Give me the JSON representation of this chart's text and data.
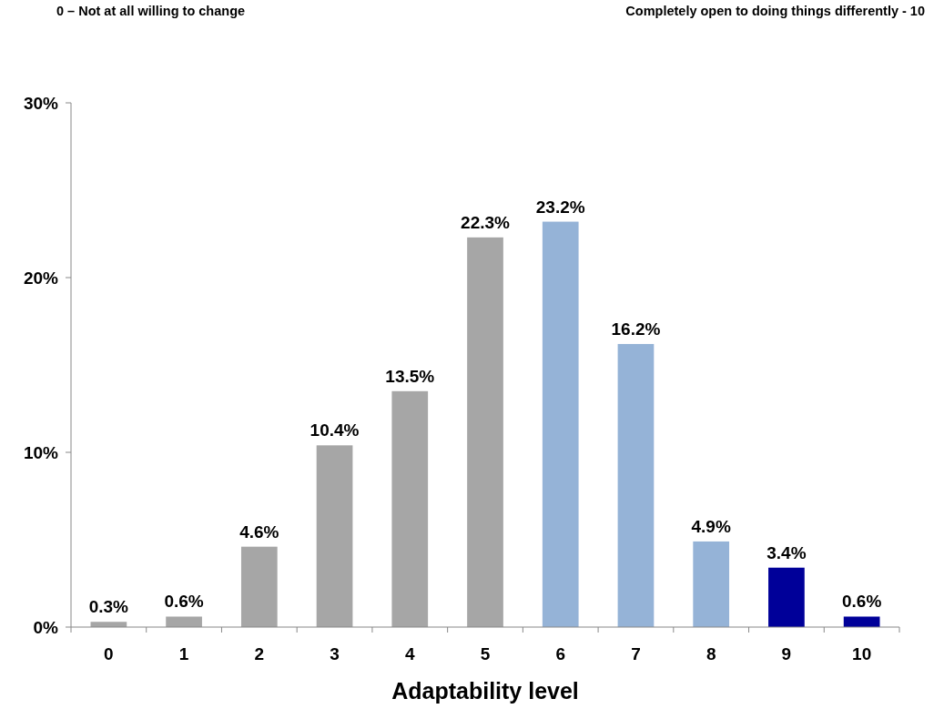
{
  "chart_data": {
    "type": "bar",
    "xlabel": "Adaptability level",
    "annotations": [
      "0 – Not at all willing to change",
      "Completely open to doing things differently - 10"
    ],
    "categories": [
      "0",
      "1",
      "2",
      "3",
      "4",
      "5",
      "6",
      "7",
      "8",
      "9",
      "10"
    ],
    "values": [
      0.3,
      0.6,
      4.6,
      10.4,
      13.5,
      22.3,
      23.2,
      16.2,
      4.9,
      3.4,
      0.6
    ],
    "colors": [
      "#a6a6a6",
      "#a6a6a6",
      "#a6a6a6",
      "#a6a6a6",
      "#a6a6a6",
      "#a6a6a6",
      "#95b3d7",
      "#95b3d7",
      "#95b3d7",
      "#000099",
      "#000099"
    ],
    "value_labels": [
      "0.3%",
      "0.6%",
      "4.6%",
      "10.4%",
      "13.5%",
      "22.3%",
      "23.2%",
      "16.2%",
      "4.9%",
      "3.4%",
      "0.6%"
    ],
    "ylim": [
      0,
      30
    ],
    "yticks": [
      {
        "value": 0,
        "label": "0%"
      },
      {
        "value": 10,
        "label": "10%"
      },
      {
        "value": 20,
        "label": "20%"
      },
      {
        "value": 30,
        "label": "30%"
      }
    ],
    "grid": false
  }
}
